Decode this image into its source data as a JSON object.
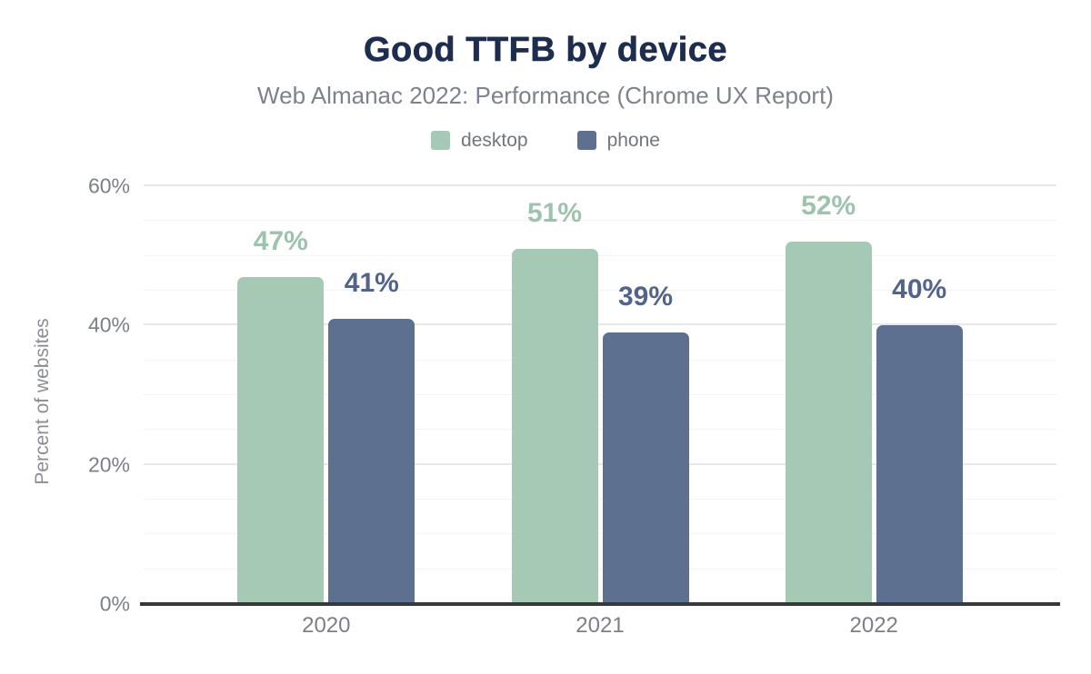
{
  "chart_data": {
    "type": "bar",
    "title": "Good TTFB by device",
    "subtitle": "Web Almanac 2022: Performance (Chrome UX Report)",
    "xlabel": "",
    "ylabel": "Percent of websites",
    "categories": [
      "2020",
      "2021",
      "2022"
    ],
    "series": [
      {
        "name": "desktop",
        "values": [
          47,
          51,
          52
        ],
        "color": "#a6c9b5",
        "label_color": "#9cc3ae"
      },
      {
        "name": "phone",
        "values": [
          41,
          39,
          40
        ],
        "color": "#5e7090",
        "label_color": "#53648a"
      }
    ],
    "data_labels": [
      [
        "47%",
        "51%",
        "52%"
      ],
      [
        "41%",
        "39%",
        "40%"
      ]
    ],
    "data_label_suffix": "%",
    "ylim": [
      0,
      60
    ],
    "yticks": [
      0,
      20,
      40,
      60
    ],
    "ytick_labels": [
      "0%",
      "20%",
      "40%",
      "60%"
    ],
    "minor_grid_step": 5,
    "grid": "horizontal",
    "legend_position": "top",
    "group_centers_pct": [
      20,
      50,
      80
    ]
  },
  "colors": {
    "background": "#ffffff",
    "title_text": "#1c2d4f",
    "subtitle_text": "#7e828a",
    "legend_text": "#72767c",
    "axis_tick_text": "#7c8086",
    "axis_title_text": "#8a8e93",
    "xaxis_line": "#37383c",
    "grid_major": "#e7e7e7",
    "grid_minor": "#f3f3f3"
  }
}
